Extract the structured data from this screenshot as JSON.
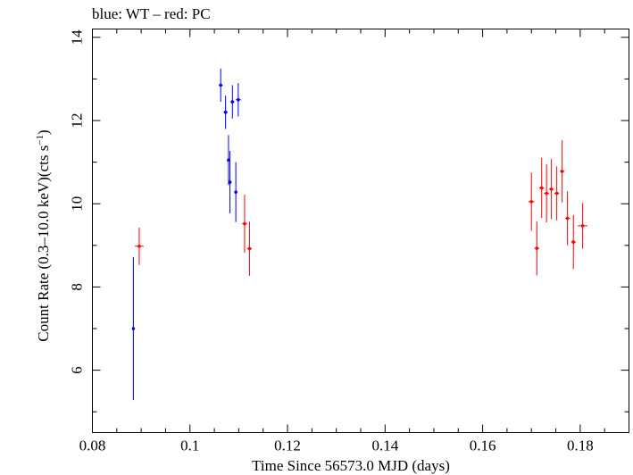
{
  "chart_data": {
    "type": "scatter",
    "title": "blue: WT – red: PC",
    "xlabel": "Time Since 56573.0 MJD (days)",
    "ylabel_main": "Count Rate (0.3–10.0 keV)(cts s",
    "ylabel_exp": "−1",
    "ylabel_close": ")",
    "xlim": [
      0.08,
      0.19
    ],
    "ylim": [
      4.5,
      14.2
    ],
    "x_ticks": [
      {
        "value": 0.08,
        "label": "0.08"
      },
      {
        "value": 0.1,
        "label": "0.1"
      },
      {
        "value": 0.12,
        "label": "0.12"
      },
      {
        "value": 0.14,
        "label": "0.14"
      },
      {
        "value": 0.16,
        "label": "0.16"
      },
      {
        "value": 0.18,
        "label": "0.18"
      }
    ],
    "y_ticks": [
      {
        "value": 6,
        "label": "6"
      },
      {
        "value": 8,
        "label": "8"
      },
      {
        "value": 10,
        "label": "10"
      },
      {
        "value": 12,
        "label": "12"
      },
      {
        "value": 14,
        "label": "14"
      }
    ],
    "grid": false,
    "series": [
      {
        "name": "WT",
        "color": "#0000ff",
        "points": [
          {
            "x": 0.0884,
            "y": 7.0,
            "yerr": 1.72,
            "xerr": 0.00015
          },
          {
            "x": 0.1063,
            "y": 12.85,
            "yerr": 0.4,
            "xerr": 0.0004
          },
          {
            "x": 0.1073,
            "y": 12.2,
            "yerr": 0.4,
            "xerr": 0.0004
          },
          {
            "x": 0.1079,
            "y": 11.05,
            "yerr": 0.6,
            "xerr": 0.00015
          },
          {
            "x": 0.1082,
            "y": 10.52,
            "yerr": 0.75,
            "xerr": 0.00015
          },
          {
            "x": 0.1087,
            "y": 12.45,
            "yerr": 0.4,
            "xerr": 0.0004
          },
          {
            "x": 0.1094,
            "y": 10.28,
            "yerr": 0.72,
            "xerr": 0.00015
          },
          {
            "x": 0.1099,
            "y": 12.5,
            "yerr": 0.4,
            "xerr": 0.0005
          }
        ]
      },
      {
        "name": "PC",
        "color": "#ff0000",
        "points": [
          {
            "x": 0.0896,
            "y": 8.98,
            "yerr": 0.45,
            "xerr": 0.0009
          },
          {
            "x": 0.1112,
            "y": 9.52,
            "yerr": 0.7,
            "xerr": 0.0005
          },
          {
            "x": 0.1122,
            "y": 8.92,
            "yerr": 0.65,
            "xerr": 0.0005
          },
          {
            "x": 0.17,
            "y": 10.05,
            "yerr": 0.7,
            "xerr": 0.0006
          },
          {
            "x": 0.1711,
            "y": 8.93,
            "yerr": 0.65,
            "xerr": 0.0005
          },
          {
            "x": 0.1721,
            "y": 10.38,
            "yerr": 0.72,
            "xerr": 0.0005
          },
          {
            "x": 0.1731,
            "y": 10.25,
            "yerr": 0.7,
            "xerr": 0.0005
          },
          {
            "x": 0.1741,
            "y": 10.35,
            "yerr": 0.72,
            "xerr": 0.0005
          },
          {
            "x": 0.1752,
            "y": 10.25,
            "yerr": 0.65,
            "xerr": 0.0005
          },
          {
            "x": 0.1763,
            "y": 10.78,
            "yerr": 0.75,
            "xerr": 0.0005
          },
          {
            "x": 0.1774,
            "y": 9.65,
            "yerr": 0.65,
            "xerr": 0.0005
          },
          {
            "x": 0.1786,
            "y": 9.08,
            "yerr": 0.65,
            "xerr": 0.0005
          },
          {
            "x": 0.1805,
            "y": 9.47,
            "yerr": 0.55,
            "xerr": 0.001
          }
        ]
      }
    ]
  }
}
